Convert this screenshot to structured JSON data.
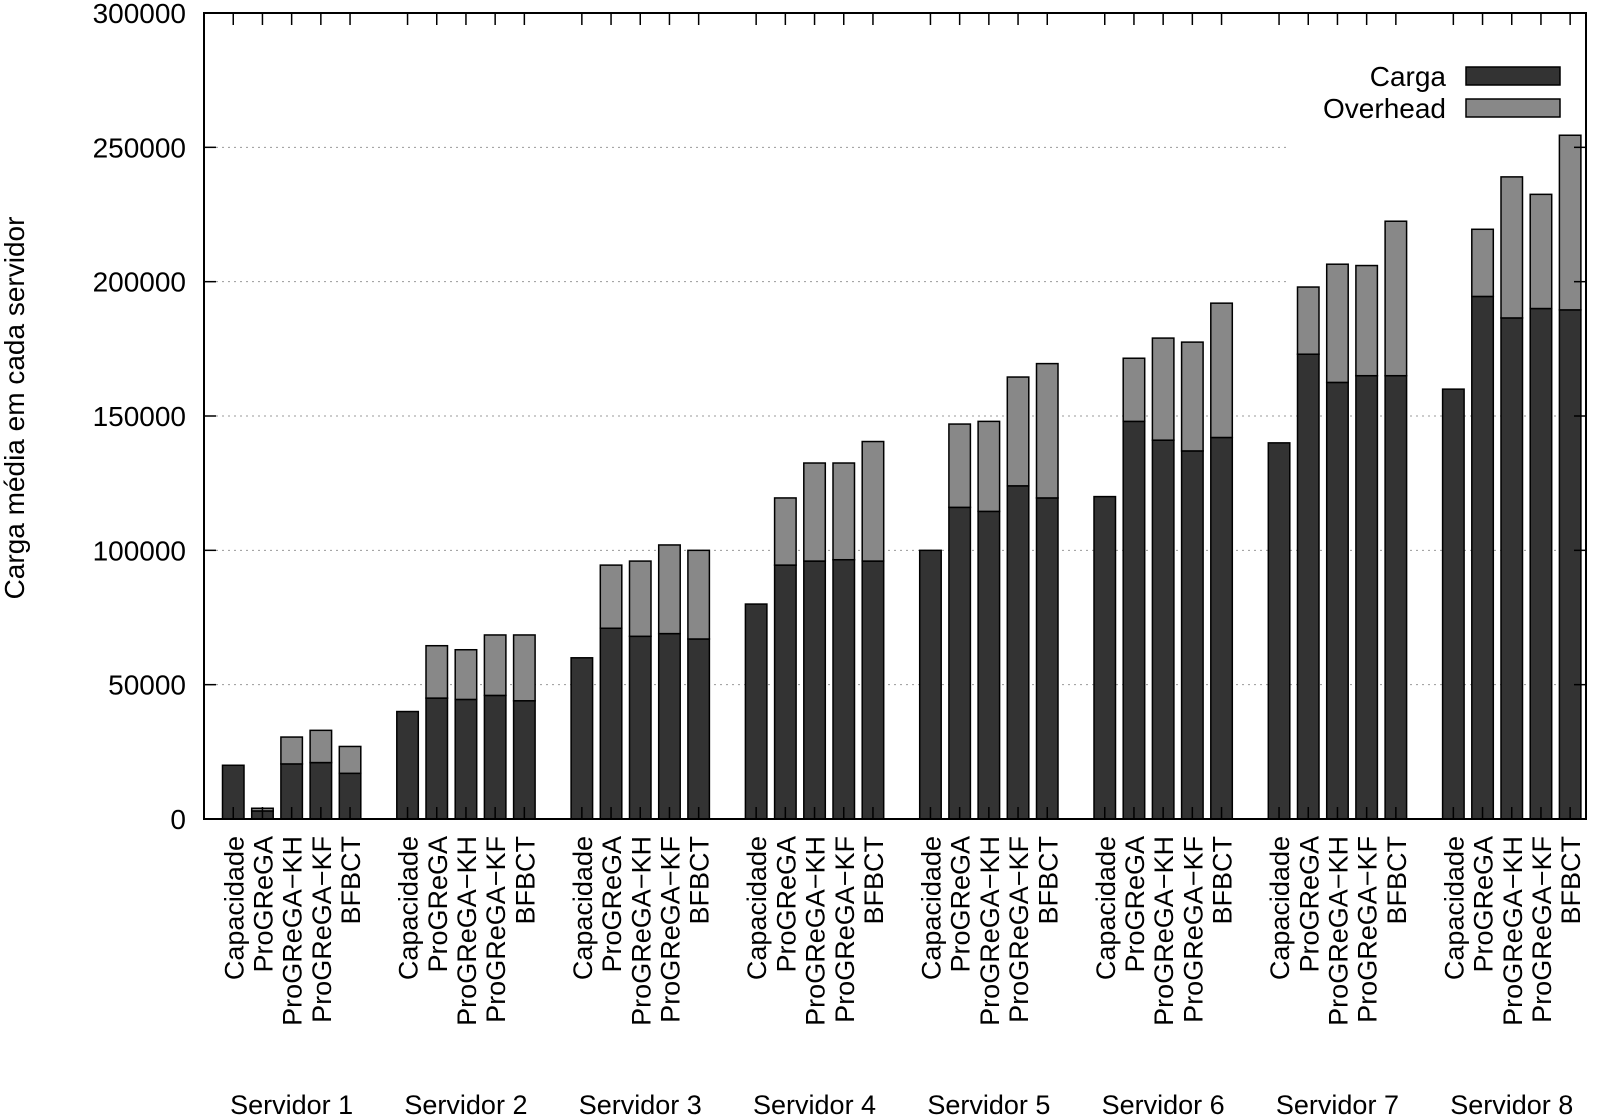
{
  "chart_data": {
    "type": "bar",
    "stacked": true,
    "ylabel": "Carga média em cada servidor",
    "xlabel": "",
    "ylim": [
      0,
      300000
    ],
    "yticks": [
      0,
      50000,
      100000,
      150000,
      200000,
      250000,
      300000
    ],
    "grid": "horizontal dotted",
    "legend_position": "top-right",
    "colors": {
      "Carga": "#333333",
      "Overhead": "#888888"
    },
    "legend": [
      "Carga",
      "Overhead"
    ],
    "groups": [
      "Servidor 1",
      "Servidor 2",
      "Servidor 3",
      "Servidor 4",
      "Servidor 5",
      "Servidor 6",
      "Servidor 7",
      "Servidor 8"
    ],
    "categories": [
      "Capacidade",
      "ProGReGA",
      "ProGReGA−KH",
      "ProGReGA−KF",
      "BFBCT"
    ],
    "series": [
      {
        "name": "Carga",
        "values": [
          [
            20000,
            3000,
            20500,
            21000,
            17000
          ],
          [
            40000,
            45000,
            44500,
            46000,
            44000
          ],
          [
            60000,
            71000,
            68000,
            69000,
            67000
          ],
          [
            80000,
            94500,
            96000,
            96500,
            96000
          ],
          [
            100000,
            116000,
            114500,
            124000,
            119500
          ],
          [
            120000,
            148000,
            141000,
            137000,
            142000
          ],
          [
            140000,
            173000,
            162500,
            165000,
            165000
          ],
          [
            160000,
            194500,
            186500,
            190000,
            189500
          ]
        ]
      },
      {
        "name": "Overhead",
        "values": [
          [
            0,
            1000,
            10000,
            12000,
            10000
          ],
          [
            0,
            19500,
            18500,
            22500,
            24500
          ],
          [
            0,
            23500,
            28000,
            33000,
            33000
          ],
          [
            0,
            25000,
            36500,
            36000,
            44500
          ],
          [
            0,
            31000,
            33500,
            40500,
            50000
          ],
          [
            0,
            23500,
            38000,
            40500,
            50000
          ],
          [
            0,
            25000,
            44000,
            41000,
            57500
          ],
          [
            0,
            25000,
            52500,
            42500,
            65000
          ]
        ]
      }
    ]
  }
}
